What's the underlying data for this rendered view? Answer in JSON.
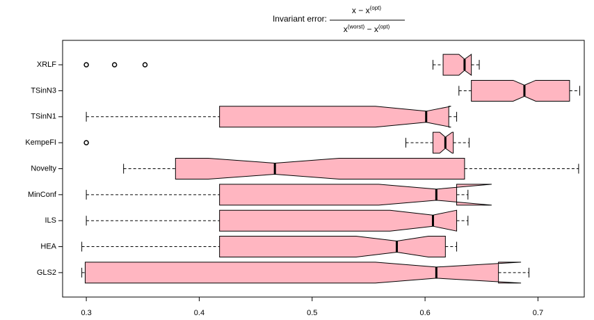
{
  "chart_data": {
    "type": "boxplot",
    "title": "Invariant error:",
    "title_numerator": [
      "x − x",
      "(opt)"
    ],
    "title_denominator": [
      "x",
      "(worst)",
      " − x",
      "(opt)"
    ],
    "color": "#ffb6c1",
    "notch": true,
    "orientation": "horizontal",
    "categories": [
      "XRLF",
      "TSinN3",
      "TSinN1",
      "KempeFI",
      "Novelty",
      "MinConf",
      "ILS",
      "HEA",
      "GLS2"
    ],
    "boxes": [
      {
        "whisker_low": 0.607,
        "q1": 0.616,
        "median": 0.635,
        "q3": 0.641,
        "whisker_high": 0.648,
        "notch_low": 0.63,
        "notch_high": 0.641,
        "outliers": [
          0.3,
          0.325,
          0.352
        ]
      },
      {
        "whisker_low": 0.63,
        "q1": 0.641,
        "median": 0.688,
        "q3": 0.728,
        "whisker_high": 0.737,
        "notch_low": 0.678,
        "notch_high": 0.698,
        "outliers": []
      },
      {
        "whisker_low": 0.3,
        "q1": 0.418,
        "median": 0.601,
        "q3": 0.621,
        "whisker_high": 0.628,
        "notch_low": 0.556,
        "notch_high": 0.623,
        "outliers": []
      },
      {
        "whisker_low": 0.583,
        "q1": 0.607,
        "median": 0.618,
        "q3": 0.625,
        "whisker_high": 0.639,
        "notch_low": 0.613,
        "notch_high": 0.624,
        "outliers": [
          0.3
        ]
      },
      {
        "whisker_low": 0.333,
        "q1": 0.379,
        "median": 0.467,
        "q3": 0.635,
        "whisker_high": 0.736,
        "notch_low": 0.408,
        "notch_high": 0.524,
        "outliers": []
      },
      {
        "whisker_low": 0.3,
        "q1": 0.418,
        "median": 0.61,
        "q3": 0.628,
        "whisker_high": 0.638,
        "notch_low": 0.559,
        "notch_high": 0.659,
        "outliers": []
      },
      {
        "whisker_low": 0.3,
        "q1": 0.418,
        "median": 0.607,
        "q3": 0.628,
        "whisker_high": 0.638,
        "notch_low": 0.569,
        "notch_high": 0.628,
        "outliers": []
      },
      {
        "whisker_low": 0.296,
        "q1": 0.418,
        "median": 0.575,
        "q3": 0.618,
        "whisker_high": 0.628,
        "notch_low": 0.539,
        "notch_high": 0.603,
        "outliers": []
      },
      {
        "whisker_low": 0.296,
        "q1": 0.299,
        "median": 0.61,
        "q3": 0.665,
        "whisker_high": 0.692,
        "notch_low": 0.556,
        "notch_high": 0.685,
        "outliers": []
      }
    ],
    "xlim": [
      0.279,
      0.741
    ],
    "xticks": [
      0.3,
      0.4,
      0.5,
      0.6,
      0.7
    ]
  }
}
